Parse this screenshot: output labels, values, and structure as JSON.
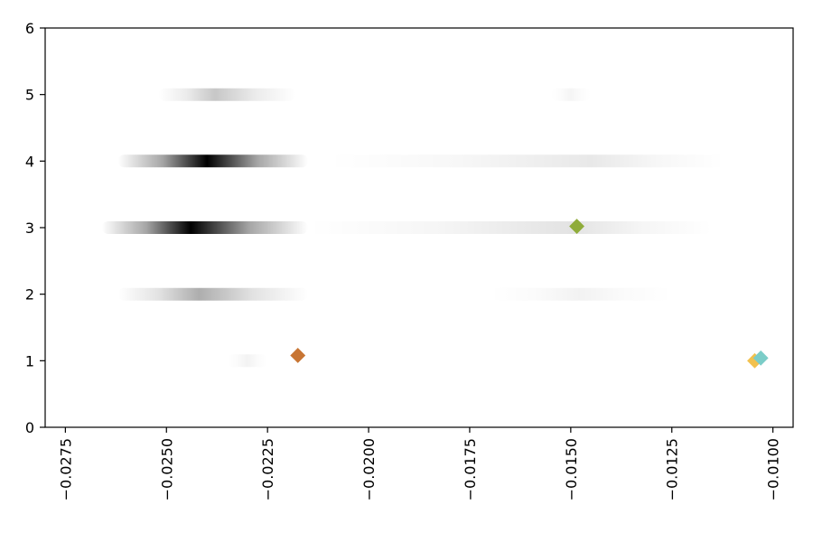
{
  "chart_data": {
    "type": "scatter",
    "title": "",
    "xlabel": "",
    "ylabel": "",
    "xlim": [
      -0.028,
      -0.0095
    ],
    "ylim": [
      0,
      6
    ],
    "grid": false,
    "x_ticks": [
      -0.0275,
      -0.025,
      -0.0225,
      -0.02,
      -0.0175,
      -0.015,
      -0.0125,
      -0.01
    ],
    "x_tick_labels": [
      "−0.0275",
      "−0.0250",
      "−0.0225",
      "−0.0200",
      "−0.0175",
      "−0.0150",
      "−0.0125",
      "−0.0100"
    ],
    "y_ticks": [
      0,
      1,
      2,
      3,
      4,
      5,
      6
    ],
    "y_tick_labels": [
      "0",
      "1",
      "2",
      "3",
      "4",
      "5",
      "6"
    ],
    "density_bands": [
      {
        "y": 5,
        "x_start": -0.0252,
        "x_end": -0.0218,
        "peak_x": -0.0238,
        "darkness": 0.22
      },
      {
        "y": 5,
        "x_start": -0.0155,
        "x_end": -0.0145,
        "peak_x": -0.015,
        "darkness": 0.04
      },
      {
        "y": 4,
        "x_start": -0.0262,
        "x_end": -0.0215,
        "peak_x": -0.024,
        "darkness": 1.0
      },
      {
        "y": 4,
        "x_start": -0.021,
        "x_end": -0.0112,
        "peak_x": -0.0145,
        "darkness": 0.09
      },
      {
        "y": 3,
        "x_start": -0.0266,
        "x_end": -0.0215,
        "peak_x": -0.0244,
        "darkness": 1.0
      },
      {
        "y": 3,
        "x_start": -0.0215,
        "x_end": -0.0115,
        "peak_x": -0.015,
        "darkness": 0.11
      },
      {
        "y": 2,
        "x_start": -0.0262,
        "x_end": -0.0215,
        "peak_x": -0.0242,
        "darkness": 0.32
      },
      {
        "y": 2,
        "x_start": -0.017,
        "x_end": -0.0125,
        "peak_x": -0.0148,
        "darkness": 0.05
      },
      {
        "y": 1,
        "x_start": -0.0235,
        "x_end": -0.0225,
        "peak_x": -0.023,
        "darkness": 0.05
      }
    ],
    "markers": [
      {
        "x": -0.02175,
        "y": 1.08,
        "color": "#c87533",
        "shape": "diamond"
      },
      {
        "x": -0.01485,
        "y": 3.02,
        "color": "#8fac3a",
        "shape": "diamond"
      },
      {
        "x": -0.01045,
        "y": 1.0,
        "color": "#f2c14e",
        "shape": "diamond"
      },
      {
        "x": -0.0103,
        "y": 1.04,
        "color": "#7bcdc8",
        "shape": "diamond"
      }
    ]
  }
}
